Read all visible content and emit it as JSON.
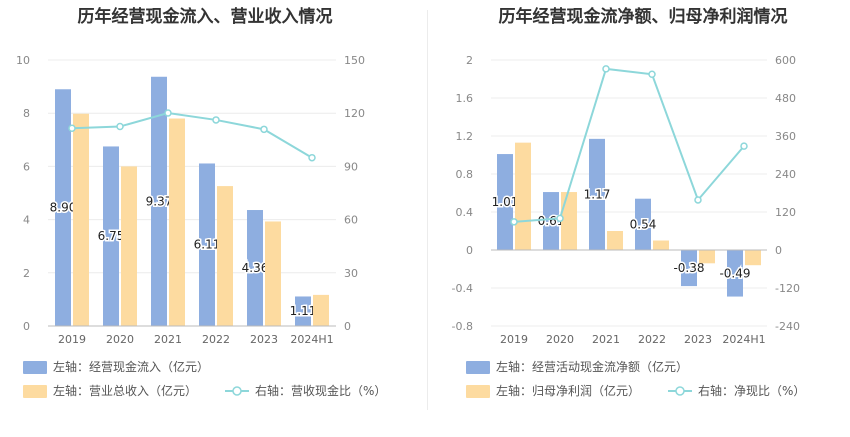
{
  "chart_data": [
    {
      "type": "bar",
      "title": "历年经营现金流入、营业收入情况",
      "categories": [
        "2019",
        "2020",
        "2021",
        "2022",
        "2023",
        "2024H1"
      ],
      "left_axis": {
        "ylim": [
          0,
          10
        ],
        "ticks": [
          "0",
          "2",
          "4",
          "6",
          "8",
          "10"
        ]
      },
      "right_axis": {
        "ylim": [
          0,
          150
        ],
        "ticks": [
          "0",
          "30",
          "60",
          "90",
          "120",
          "150"
        ]
      },
      "series": [
        {
          "name": "左轴：经营现金流入（亿元）",
          "type": "bar",
          "axis": "left",
          "color": "#8eaee0",
          "values": [
            8.9,
            6.75,
            9.37,
            6.11,
            4.36,
            1.11
          ],
          "labels": [
            "8.90",
            "6.75",
            "9.37",
            "6.11",
            "4.36",
            "1.11"
          ]
        },
        {
          "name": "左轴：营业总收入（亿元）",
          "type": "bar",
          "axis": "left",
          "color": "#fddba0",
          "values": [
            7.98,
            6.0,
            7.8,
            5.26,
            3.93,
            1.17
          ]
        },
        {
          "name": "右轴：营收现金比（%）",
          "type": "line",
          "axis": "right",
          "color": "#8dd7da",
          "values": [
            111.5,
            112.5,
            120.1,
            116.2,
            110.9,
            94.9
          ]
        }
      ]
    },
    {
      "type": "bar",
      "title": "历年经营现金流净额、归母净利润情况",
      "categories": [
        "2019",
        "2020",
        "2021",
        "2022",
        "2023",
        "2024H1"
      ],
      "left_axis": {
        "ylim": [
          -0.8,
          2
        ],
        "ticks": [
          "-0.8",
          "-0.4",
          "0",
          "0.4",
          "0.8",
          "1.2",
          "1.6",
          "2"
        ]
      },
      "right_axis": {
        "ylim": [
          -240,
          600
        ],
        "ticks": [
          "-240",
          "-120",
          "0",
          "120",
          "240",
          "360",
          "480",
          "600"
        ]
      },
      "series": [
        {
          "name": "左轴：经营活动现金流净额（亿元）",
          "type": "bar",
          "axis": "left",
          "color": "#8eaee0",
          "values": [
            1.01,
            0.61,
            1.17,
            0.54,
            -0.38,
            -0.49
          ],
          "labels": [
            "1.01",
            "0.61",
            "1.17",
            "0.54",
            "-0.38",
            "-0.49"
          ]
        },
        {
          "name": "左轴：归母净利润（亿元）",
          "type": "bar",
          "axis": "left",
          "color": "#fddba0",
          "values": [
            1.13,
            0.61,
            0.2,
            0.1,
            -0.14,
            -0.16
          ]
        },
        {
          "name": "右轴：净现比（%）",
          "type": "line",
          "axis": "right",
          "color": "#8dd7da",
          "values": [
            89,
            100,
            572,
            555,
            158,
            328
          ]
        }
      ]
    }
  ]
}
